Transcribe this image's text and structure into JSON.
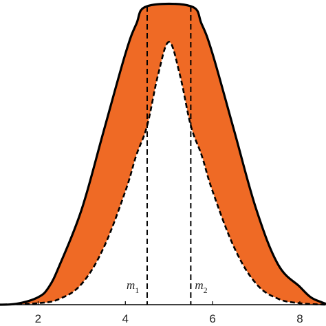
{
  "chart_data": {
    "type": "area",
    "title": "",
    "xlabel": "",
    "ylabel": "",
    "xlim": [
      1.0,
      8.6
    ],
    "ylim": [
      0.0,
      1.0
    ],
    "grid": false,
    "x_ticks": [
      2,
      4,
      6,
      8
    ],
    "x_tick_labels": [
      "2",
      "4",
      "6",
      "8"
    ],
    "fill_color": "#ef6a25",
    "line_color": "#000000",
    "upper": {
      "style": "solid",
      "x": [
        1.0,
        1.5,
        2.0,
        2.25,
        2.5,
        3.0,
        3.5,
        4.0,
        4.25,
        4.5,
        5.5,
        5.75,
        6.0,
        6.5,
        7.0,
        7.5,
        8.0,
        8.25,
        8.5,
        8.6
      ],
      "y": [
        0.0,
        0.003,
        0.025,
        0.06,
        0.135,
        0.32,
        0.58,
        0.84,
        0.94,
        1.0,
        1.0,
        0.94,
        0.84,
        0.58,
        0.32,
        0.135,
        0.06,
        0.025,
        0.008,
        0.003
      ]
    },
    "lower": {
      "style": "dashed",
      "x": [
        1.0,
        2.0,
        2.5,
        3.0,
        3.5,
        4.0,
        4.25,
        4.5,
        4.75,
        5.0,
        5.25,
        5.5,
        5.75,
        6.0,
        6.5,
        7.0,
        7.5,
        8.0,
        8.6
      ],
      "y": [
        0.0,
        0.005,
        0.02,
        0.07,
        0.19,
        0.38,
        0.5,
        0.6,
        0.77,
        0.88,
        0.77,
        0.6,
        0.5,
        0.38,
        0.19,
        0.07,
        0.02,
        0.005,
        0.0
      ]
    },
    "vlines": [
      {
        "x": 4.5,
        "label": "m",
        "subscript": "1"
      },
      {
        "x": 5.5,
        "label": "m",
        "subscript": "2"
      }
    ]
  }
}
